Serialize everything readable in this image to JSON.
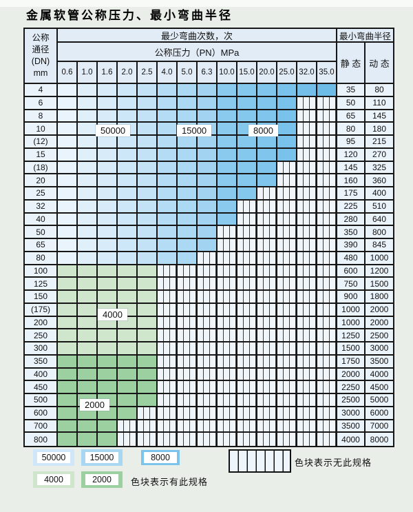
{
  "title": "金属软管公称压力、最小弯曲半径",
  "table": {
    "dn_header_lines": [
      "公称",
      "通径",
      "(DN)",
      "mm"
    ],
    "bend_cycles_header": "最少弯曲次数，次",
    "pressure_header": "公称压力（PN）MPa",
    "radius_header": "最小弯曲半径",
    "static_header": "静 态",
    "dynamic_header": "动 态"
  },
  "zones": {
    "blue_shades": [
      "#e9f4fc",
      "#e0f0fb",
      "#d7ebf9",
      "#cde7f8",
      "#c4e2f6",
      "#b4dcf4",
      "#abd8f3",
      "#a2d4f1",
      "#8acaee",
      "#85c8ed",
      "#7fc5ec",
      "#79c2eb",
      "#73bfe9",
      "#6dbce8"
    ],
    "green_4000": "#cfe6cd",
    "green_2000": "#9cd0a0",
    "hatch_bg": "#f0f5fa",
    "hatch_line": "#3a3a3a"
  },
  "overlay_labels": [
    {
      "text": "50000"
    },
    {
      "text": "15000"
    },
    {
      "text": "8000"
    },
    {
      "text": "4000"
    },
    {
      "text": "2000"
    }
  ],
  "legend": {
    "items": [
      {
        "label": "50000",
        "color": "#cfe7f8"
      },
      {
        "label": "15000",
        "color": "#a9d7f2"
      },
      {
        "label": "8000",
        "color": "#7cc4eb"
      },
      {
        "label": "4000",
        "color": "#cfe6cd"
      },
      {
        "label": "2000",
        "color": "#9cd0a0"
      }
    ],
    "has_spec_text": "色块表示有此规格",
    "no_spec_text": "色块表示无此规格"
  },
  "chart_data": {
    "type": "table",
    "title": "金属软管公称压力、最小弯曲半径",
    "pressure_cols": [
      "0.6",
      "1.0",
      "1.6",
      "2.0",
      "2.5",
      "4.0",
      "5.0",
      "6.3",
      "10.0",
      "15.0",
      "20.0",
      "25.0",
      "32.0",
      "35.0"
    ],
    "cycle_zones": [
      {
        "cycles": "50000",
        "applies": "blue zone PN 0.6–2.5"
      },
      {
        "cycles": "15000",
        "applies": "blue zone PN 4.0–6.3"
      },
      {
        "cycles": "8000",
        "applies": "blue zone PN 10.0–35.0"
      },
      {
        "cycles": "4000",
        "applies": "green zone DN 100–300"
      },
      {
        "cycles": "2000",
        "applies": "green zone DN 350–800"
      }
    ],
    "rows": [
      {
        "dn": "4",
        "last_col": 13,
        "palette": "blue",
        "max_pn": "35.0",
        "static": 35,
        "dynamic": 80
      },
      {
        "dn": "6",
        "last_col": 11,
        "palette": "blue",
        "max_pn": "25.0",
        "static": 50,
        "dynamic": 110
      },
      {
        "dn": "8",
        "last_col": 11,
        "palette": "blue",
        "max_pn": "25.0",
        "static": 65,
        "dynamic": 145
      },
      {
        "dn": "10",
        "last_col": 11,
        "palette": "blue",
        "max_pn": "25.0",
        "static": 80,
        "dynamic": 180
      },
      {
        "dn": "(12)",
        "last_col": 11,
        "palette": "blue",
        "max_pn": "25.0",
        "static": 95,
        "dynamic": 215
      },
      {
        "dn": "15",
        "last_col": 11,
        "palette": "blue",
        "max_pn": "25.0",
        "static": 120,
        "dynamic": 270
      },
      {
        "dn": "(18)",
        "last_col": 10,
        "palette": "blue",
        "max_pn": "20.0",
        "static": 145,
        "dynamic": 325
      },
      {
        "dn": "20",
        "last_col": 10,
        "palette": "blue",
        "max_pn": "20.0",
        "static": 160,
        "dynamic": 360
      },
      {
        "dn": "25",
        "last_col": 9,
        "palette": "blue",
        "max_pn": "15.0",
        "static": 175,
        "dynamic": 400
      },
      {
        "dn": "32",
        "last_col": 8,
        "palette": "blue",
        "max_pn": "10.0",
        "static": 225,
        "dynamic": 510
      },
      {
        "dn": "40",
        "last_col": 8,
        "palette": "blue",
        "max_pn": "10.0",
        "static": 280,
        "dynamic": 640
      },
      {
        "dn": "50",
        "last_col": 7,
        "palette": "blue",
        "max_pn": "6.3",
        "static": 350,
        "dynamic": 800
      },
      {
        "dn": "65",
        "last_col": 7,
        "palette": "blue",
        "max_pn": "6.3",
        "static": 390,
        "dynamic": 845
      },
      {
        "dn": "80",
        "last_col": 6,
        "palette": "blue",
        "max_pn": "5.0",
        "static": 480,
        "dynamic": 1000
      },
      {
        "dn": "100",
        "last_col": 4,
        "palette": "green_4000",
        "max_pn": "2.5",
        "static": 600,
        "dynamic": 1200
      },
      {
        "dn": "125",
        "last_col": 4,
        "palette": "green_4000",
        "max_pn": "2.5",
        "static": 750,
        "dynamic": 1500
      },
      {
        "dn": "150",
        "last_col": 4,
        "palette": "green_4000",
        "max_pn": "2.5",
        "static": 900,
        "dynamic": 1800
      },
      {
        "dn": "(175)",
        "last_col": 4,
        "palette": "green_4000",
        "max_pn": "2.5",
        "static": 1000,
        "dynamic": 2000
      },
      {
        "dn": "200",
        "last_col": 4,
        "palette": "green_4000",
        "max_pn": "2.5",
        "static": 1000,
        "dynamic": 2000
      },
      {
        "dn": "250",
        "last_col": 4,
        "palette": "green_4000",
        "max_pn": "2.5",
        "static": 1250,
        "dynamic": 2500
      },
      {
        "dn": "300",
        "last_col": 4,
        "palette": "green_4000",
        "max_pn": "2.5",
        "static": 1500,
        "dynamic": 3000
      },
      {
        "dn": "350",
        "last_col": 4,
        "palette": "green_2000",
        "max_pn": "2.5",
        "static": 1750,
        "dynamic": 3500
      },
      {
        "dn": "400",
        "last_col": 4,
        "palette": "green_2000",
        "max_pn": "2.5",
        "static": 2000,
        "dynamic": 4000
      },
      {
        "dn": "450",
        "last_col": 4,
        "palette": "green_2000",
        "max_pn": "2.5",
        "static": 2250,
        "dynamic": 4500
      },
      {
        "dn": "500",
        "last_col": 4,
        "palette": "green_2000",
        "max_pn": "2.5",
        "static": 2500,
        "dynamic": 5000
      },
      {
        "dn": "600",
        "last_col": 3,
        "palette": "green_2000",
        "max_pn": "2.0",
        "static": 3000,
        "dynamic": 6000
      },
      {
        "dn": "700",
        "last_col": 2,
        "palette": "green_2000",
        "max_pn": "1.6",
        "static": 3500,
        "dynamic": 7000
      },
      {
        "dn": "800",
        "last_col": 2,
        "palette": "green_2000",
        "max_pn": "1.6",
        "static": 4000,
        "dynamic": 8000
      }
    ]
  }
}
